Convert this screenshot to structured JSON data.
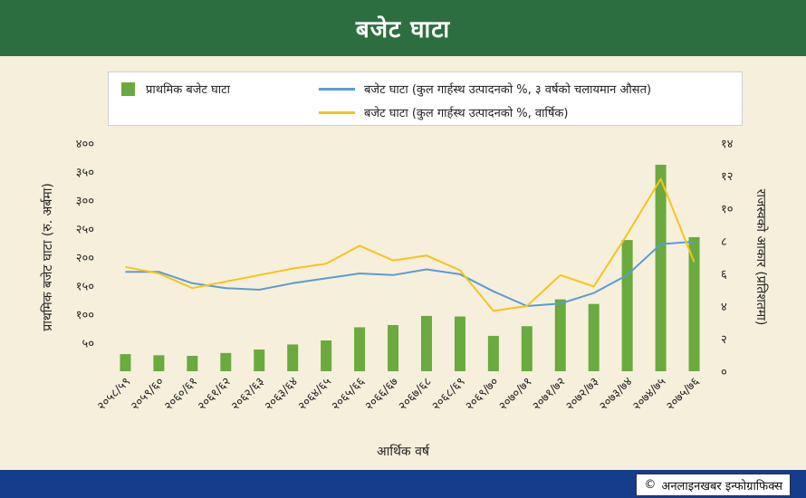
{
  "header": {
    "title": "बजेट घाटा"
  },
  "footer": {
    "credit": "अनलाइनखबर इन्फोग्राफिक्स",
    "copyright_symbol": "©"
  },
  "colors": {
    "bars": "#6aaa3e",
    "moving_average": "#5b9bd5",
    "annual": "#f5c518",
    "header": "#2c6e40",
    "footer": "#163c8c"
  },
  "chart_data": {
    "type": "bar+line",
    "xlabel": "आर्थिक वर्ष",
    "ylabel_left": "प्राथमिक बजेट घाटा (रु. अर्बमा)",
    "ylabel_right": "राजस्वको आकार (प्रतिशतमा)",
    "left_ylim": [
      0,
      400
    ],
    "right_ylim": [
      0,
      14
    ],
    "left_ticks": [
      "५०",
      "१००",
      "१५०",
      "२००",
      "२५०",
      "३००",
      "३५०",
      "४००"
    ],
    "left_tick_values": [
      50,
      100,
      150,
      200,
      250,
      300,
      350,
      400
    ],
    "right_ticks": [
      "०",
      "२",
      "४",
      "६",
      "८",
      "१०",
      "१२",
      "१४"
    ],
    "right_tick_values": [
      0,
      2,
      4,
      6,
      8,
      10,
      12,
      14
    ],
    "categories": [
      "२०५८/५९",
      "२०५९/६०",
      "२०६०/६१",
      "२०६१/६२",
      "२०६२/६३",
      "२०६३/६४",
      "२०६४/६५",
      "२०६५/६६",
      "२०६६/६७",
      "२०६७/६८",
      "२०६८/६९",
      "२०६९/७०",
      "२०७०/७१",
      "२०७१/७२",
      "२०७२/७३",
      "२०७३/७४",
      "२०७४/७५",
      "२०७५/७६"
    ],
    "series": [
      {
        "name": "प्राथमिक बजेट घाटा",
        "kind": "bar",
        "axis": "left",
        "values": [
          30,
          28,
          27,
          32,
          38,
          47,
          54,
          77,
          81,
          97,
          96,
          62,
          79,
          126,
          118,
          230,
          362,
          235
        ]
      },
      {
        "name": "बजेट घाटा (कुल गार्हस्थ उत्पादनको %, ३ वर्षको चलायमान औसत)",
        "kind": "line",
        "axis": "right",
        "values": [
          6.1,
          6.1,
          5.4,
          5.1,
          5.0,
          5.4,
          5.7,
          6.0,
          5.9,
          6.25,
          5.95,
          4.9,
          4.0,
          4.15,
          4.8,
          5.9,
          7.8,
          7.95
        ]
      },
      {
        "name": "बजेट घाटा (कुल गार्हस्थ उत्पादनको %, वार्षिक)",
        "kind": "line",
        "axis": "right",
        "values": [
          6.4,
          6.0,
          5.1,
          5.5,
          5.9,
          6.3,
          6.6,
          7.7,
          6.8,
          7.1,
          6.2,
          3.7,
          4.0,
          5.9,
          5.2,
          8.4,
          11.8,
          6.7
        ]
      }
    ]
  }
}
